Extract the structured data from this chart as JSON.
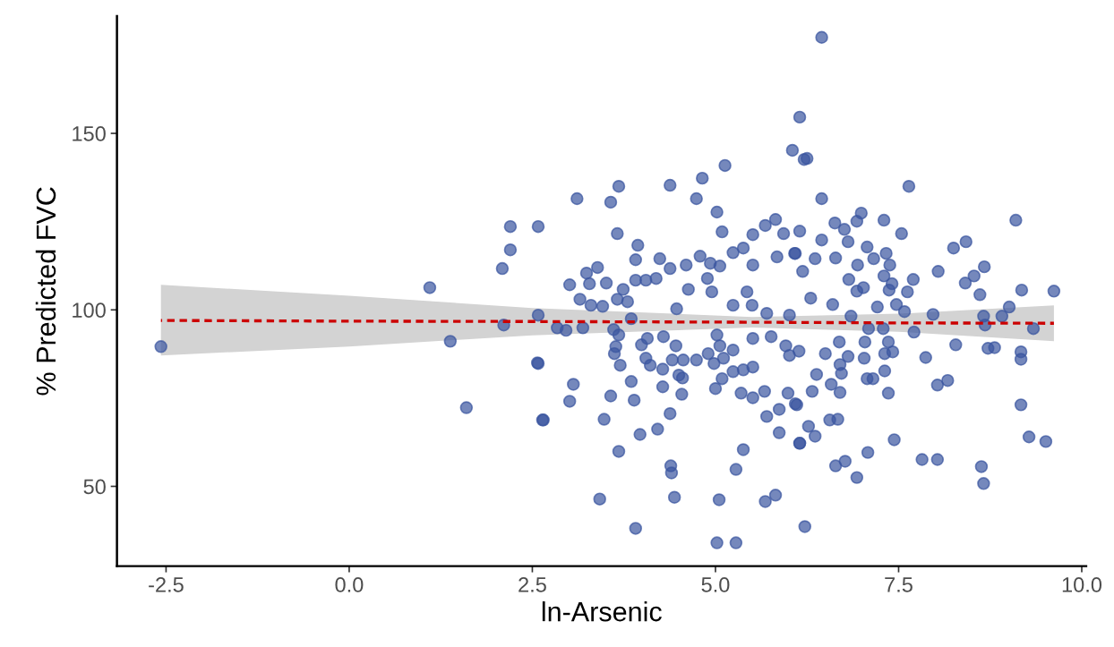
{
  "chart_data": {
    "type": "scatter",
    "xlabel": "ln-Arsenic",
    "ylabel": "% Predicted FVC",
    "xlim": [
      -3.17,
      10.06
    ],
    "ylim": [
      27.4,
      183.2
    ],
    "xticks": [
      {
        "value": -2.5,
        "label": "-2.5"
      },
      {
        "value": 0,
        "label": "0.0"
      },
      {
        "value": 2.5,
        "label": "2.5"
      },
      {
        "value": 5,
        "label": "5.0"
      },
      {
        "value": 7.5,
        "label": "7.5"
      },
      {
        "value": 10,
        "label": "10.0"
      }
    ],
    "yticks": [
      50,
      100,
      150
    ],
    "grid": false,
    "marker": "circle",
    "series": [
      {
        "color": "#3b55a0",
        "x": [
          -2.57,
          1.1,
          1.38,
          1.6,
          2.09,
          2.11,
          2.2,
          2.2,
          2.58,
          2.58,
          2.57,
          2.64,
          2.58,
          3.11,
          3.68,
          3.57,
          3.66,
          3.94,
          3.91,
          4.38,
          4.82,
          4.74,
          5.13,
          5.02,
          5.09,
          6.15,
          6.05,
          6.21,
          3.01,
          3.15,
          3.24,
          3.39,
          3.28,
          3.3,
          3.46,
          3.51,
          3.66,
          3.74,
          3.8,
          3.91,
          4.05,
          4.19,
          4.24,
          4.38,
          4.6,
          4.79,
          4.93,
          5.06,
          5.24,
          5.38,
          5.51,
          5.84,
          6.09,
          5.82,
          5.68,
          5.51,
          5.93,
          2.84,
          2.96,
          3.19,
          3.61,
          3.68,
          3.64,
          3.62,
          3.7,
          3.85,
          3.99,
          4.07,
          4.05,
          4.11,
          4.29,
          4.46,
          4.41,
          4.56,
          4.28,
          4.74,
          4.9,
          4.98,
          5.11,
          5.24,
          5.38,
          5.09,
          5.51,
          4.5,
          4.55,
          3.06,
          3.01,
          2.65,
          3.57,
          3.85,
          3.89,
          4.28,
          4.54,
          3.48,
          4.38,
          4.21,
          3.97,
          3.68,
          4.39,
          4.4,
          3.42,
          4.44,
          3.91,
          5.02,
          5.28,
          5.05,
          5.68,
          5.82,
          5.28,
          5.38,
          5.7,
          5.87,
          5.87,
          6.15,
          5.0,
          5.35,
          5.51,
          5.67,
          5.99,
          6.09,
          4.47,
          4.63,
          4.89,
          4.95,
          5.24,
          5.43,
          5.5,
          5.7,
          6.01,
          5.02,
          5.06,
          5.24,
          5.51,
          5.76,
          5.96,
          6.01,
          6.25,
          7.64,
          6.45,
          6.99,
          6.93,
          7.3,
          6.63,
          6.76,
          6.15,
          7.54,
          6.81,
          6.45,
          7.07,
          6.08,
          8.25,
          8.42,
          9.1,
          7.33,
          7.16,
          7.38,
          6.94,
          6.64,
          6.36,
          8.04,
          8.67,
          8.53,
          8.41,
          7.7,
          7.3,
          6.82,
          6.19,
          7.41,
          7.02,
          7.62,
          8.61,
          9.18,
          9.62,
          7.37,
          6.93,
          6.3,
          6.6,
          7.47,
          7.58,
          9.01,
          7.97,
          8.66,
          8.91,
          8.68,
          9.34,
          7.71,
          7.21,
          6.85,
          7.09,
          7.29,
          8.28,
          8.72,
          8.81,
          9.17,
          9.17,
          7.87,
          7.36,
          7.42,
          7.31,
          7.04,
          7.03,
          6.81,
          6.5,
          6.69,
          6.14,
          6.7,
          6.72,
          6.38,
          7.31,
          7.07,
          7.15,
          6.58,
          6.7,
          6.32,
          7.36,
          6.11,
          8.03,
          8.17,
          9.17,
          6.56,
          6.67,
          6.27,
          6.36,
          6.15,
          7.44,
          7.08,
          6.77,
          6.64,
          6.93,
          7.82,
          8.03,
          9.28,
          9.51,
          8.63,
          8.66,
          6.22,
          6.45
        ],
        "values": [
          89.6,
          106.3,
          91.1,
          72.3,
          111.7,
          95.7,
          123.6,
          117.0,
          123.6,
          98.5,
          85.0,
          68.8,
          84.8,
          131.5,
          135.0,
          130.5,
          121.6,
          118.3,
          114.2,
          135.3,
          137.3,
          131.5,
          140.9,
          127.7,
          122.1,
          154.6,
          145.2,
          142.6,
          107.1,
          103.0,
          110.4,
          112.0,
          107.4,
          101.3,
          101.0,
          107.6,
          103.0,
          105.8,
          102.3,
          108.4,
          108.4,
          108.9,
          114.5,
          111.7,
          112.7,
          115.2,
          113.2,
          112.4,
          116.2,
          117.5,
          112.7,
          115.0,
          116.0,
          125.6,
          123.9,
          121.3,
          121.6,
          94.9,
          94.2,
          94.9,
          94.4,
          92.9,
          89.6,
          87.6,
          84.3,
          97.5,
          90.1,
          91.9,
          86.3,
          84.3,
          92.4,
          89.8,
          85.8,
          85.8,
          83.2,
          85.8,
          87.6,
          84.8,
          86.3,
          82.5,
          83.0,
          80.5,
          83.8,
          81.5,
          80.7,
          78.9,
          74.1,
          68.8,
          75.6,
          79.7,
          74.4,
          78.2,
          76.1,
          69.0,
          70.6,
          66.2,
          64.7,
          59.9,
          55.8,
          53.8,
          46.4,
          46.9,
          38.1,
          34.0,
          34.0,
          46.2,
          45.7,
          47.5,
          54.8,
          60.4,
          69.8,
          71.8,
          65.2,
          62.2,
          77.7,
          76.4,
          75.1,
          76.9,
          76.4,
          73.4,
          100.3,
          105.8,
          108.9,
          105.1,
          101.3,
          105.1,
          101.3,
          99.0,
          98.5,
          92.9,
          89.8,
          88.6,
          91.9,
          92.4,
          89.8,
          87.1,
          142.9,
          135.0,
          131.5,
          127.4,
          125.1,
          125.4,
          124.6,
          122.8,
          122.3,
          121.6,
          119.3,
          119.8,
          117.8,
          116.0,
          117.5,
          119.3,
          125.4,
          116.0,
          114.5,
          112.7,
          112.7,
          114.7,
          114.5,
          110.9,
          112.2,
          109.6,
          107.6,
          108.6,
          109.6,
          108.6,
          110.9,
          107.4,
          106.3,
          105.1,
          104.3,
          105.6,
          105.3,
          105.6,
          105.3,
          103.3,
          101.5,
          101.5,
          99.5,
          100.8,
          98.7,
          98.2,
          98.2,
          95.7,
          94.7,
          93.7,
          100.8,
          98.2,
          94.7,
          94.7,
          90.1,
          89.1,
          89.3,
          88.1,
          86.0,
          86.5,
          90.9,
          88.1,
          87.6,
          90.9,
          86.3,
          86.8,
          87.6,
          90.9,
          88.3,
          84.5,
          82.0,
          81.7,
          82.7,
          80.5,
          80.5,
          78.9,
          76.6,
          76.9,
          76.4,
          73.1,
          78.7,
          80.0,
          73.1,
          68.8,
          69.0,
          67.0,
          64.2,
          62.2,
          63.2,
          59.6,
          57.1,
          55.8,
          52.5,
          57.6,
          57.6,
          64.0,
          62.7,
          55.6,
          50.8,
          38.6,
          177.2
        ]
      },
      {
        "type": "line",
        "color": "#cc0000",
        "line_style": "dashed",
        "marker": "none",
        "x": [
          -2.57,
          0,
          2.5,
          5.5,
          7.5,
          9.62
        ],
        "values": [
          97.0,
          96.8,
          96.7,
          96.5,
          96.3,
          96.2
        ],
        "lower": [
          87.1,
          89.6,
          92.8,
          95.0,
          93.8,
          91.1
        ],
        "upper": [
          107.1,
          104.0,
          100.5,
          98.0,
          98.9,
          101.3
        ]
      }
    ]
  }
}
